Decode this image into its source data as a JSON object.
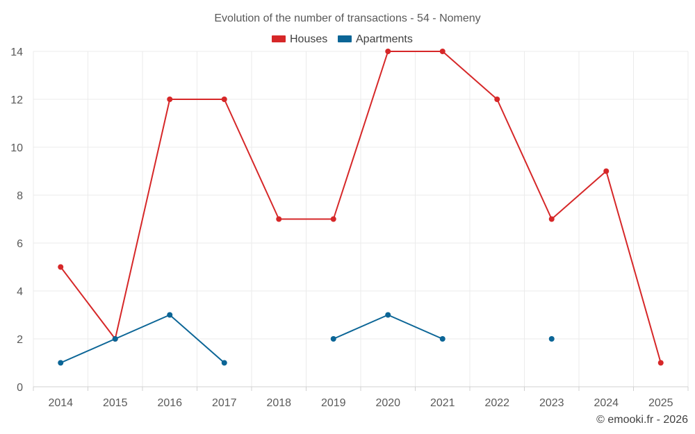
{
  "chart_data": {
    "type": "line",
    "title": "Evolution of the number of transactions - 54 - Nomeny",
    "xlabel": "",
    "ylabel": "",
    "categories": [
      "2014",
      "2015",
      "2016",
      "2017",
      "2018",
      "2019",
      "2020",
      "2021",
      "2022",
      "2023",
      "2024",
      "2025"
    ],
    "ylim": [
      0,
      14
    ],
    "yticks": [
      0,
      2,
      4,
      6,
      8,
      10,
      12,
      14
    ],
    "grid": true,
    "legend_position": "top-center",
    "series": [
      {
        "name": "Houses",
        "color": "#d62728",
        "values": [
          5,
          2,
          12,
          12,
          7,
          7,
          14,
          14,
          12,
          7,
          9,
          1
        ]
      },
      {
        "name": "Apartments",
        "color": "#0b6596",
        "values": [
          1,
          2,
          3,
          1,
          null,
          2,
          3,
          2,
          null,
          2,
          null,
          null
        ]
      }
    ]
  },
  "credit": "© emooki.fr - 2026"
}
